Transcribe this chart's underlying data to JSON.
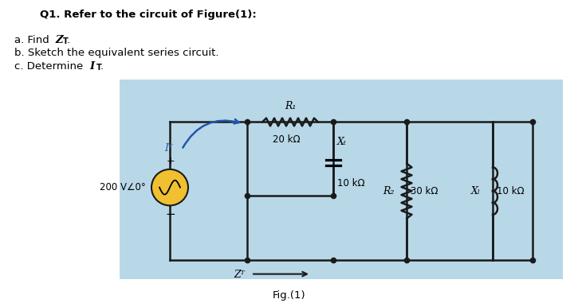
{
  "bg_color": "#ffffff",
  "circuit_bg_color": "#b8d8e8",
  "title_text": "Q1. Refer to the circuit of Figure(1):",
  "q_a": "a. Find Z",
  "q_a2": "T",
  "q_b": "b. Sketch the equivalent series circuit.",
  "q_c": "c. Determine I",
  "q_c2": "T",
  "fig_label": "Fig.(1)",
  "R1_label": "R₁",
  "R1_val": "20 kΩ",
  "Xc_label": "Xₜ",
  "Xc_val": "10 kΩ",
  "R2_label": "R₂",
  "R2_val": "30 kΩ",
  "XL_label": "Xₗ",
  "XL_val": "10 kΩ",
  "Vs_label": "200 V∠0°",
  "ZT_label": "Zᵀ",
  "IT_label": "Iᵀ",
  "wire_color": "#1a1a1a",
  "arrow_color": "#2255aa",
  "source_fill": "#f0c030",
  "dot_color": "#1a1a1a"
}
